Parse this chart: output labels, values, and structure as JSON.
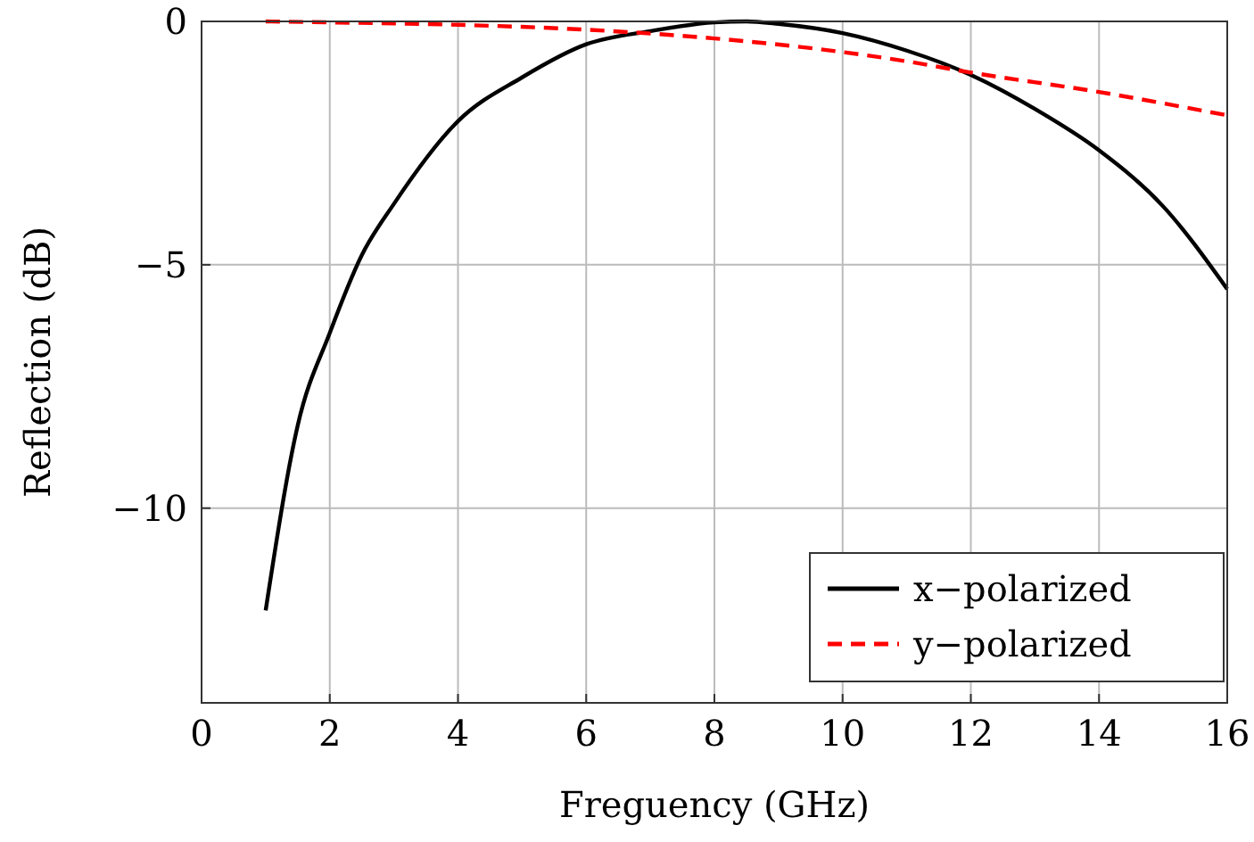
{
  "chart_data": {
    "type": "line",
    "xlabel": "Freguency (GHz)",
    "ylabel": "Reflection (dB)",
    "xlim": [
      0,
      16
    ],
    "ylim": [
      -14,
      0
    ],
    "xticks": [
      0,
      2,
      4,
      6,
      8,
      10,
      12,
      14,
      16
    ],
    "yticks": [
      {
        "value": -10,
        "label": "−10"
      },
      {
        "value": -5,
        "label": "−5"
      },
      0
    ],
    "grid": true,
    "legend": "bottom right",
    "series": [
      {
        "name": "x−polarized",
        "color": "#000000",
        "line_style": "solid",
        "x": [
          1,
          1.5,
          2,
          2.5,
          3,
          4,
          5,
          6,
          7,
          8,
          8.5,
          9,
          10,
          11,
          12,
          13,
          14,
          15,
          16
        ],
        "values": [
          -12.1,
          -8.3,
          -6.4,
          -4.8,
          -3.75,
          -2.05,
          -1.15,
          -0.47,
          -0.2,
          -0.02,
          0,
          -0.05,
          -0.24,
          -0.6,
          -1.1,
          -1.8,
          -2.65,
          -3.8,
          -5.5
        ]
      },
      {
        "name": "y−polarized",
        "color": "#ff0000",
        "line_style": "dashed",
        "x": [
          1,
          2,
          4,
          6,
          8,
          10,
          11,
          12,
          14,
          16
        ],
        "values": [
          0,
          -0.02,
          -0.07,
          -0.17,
          -0.35,
          -0.63,
          -0.82,
          -1.05,
          -1.45,
          -1.93
        ]
      }
    ]
  }
}
